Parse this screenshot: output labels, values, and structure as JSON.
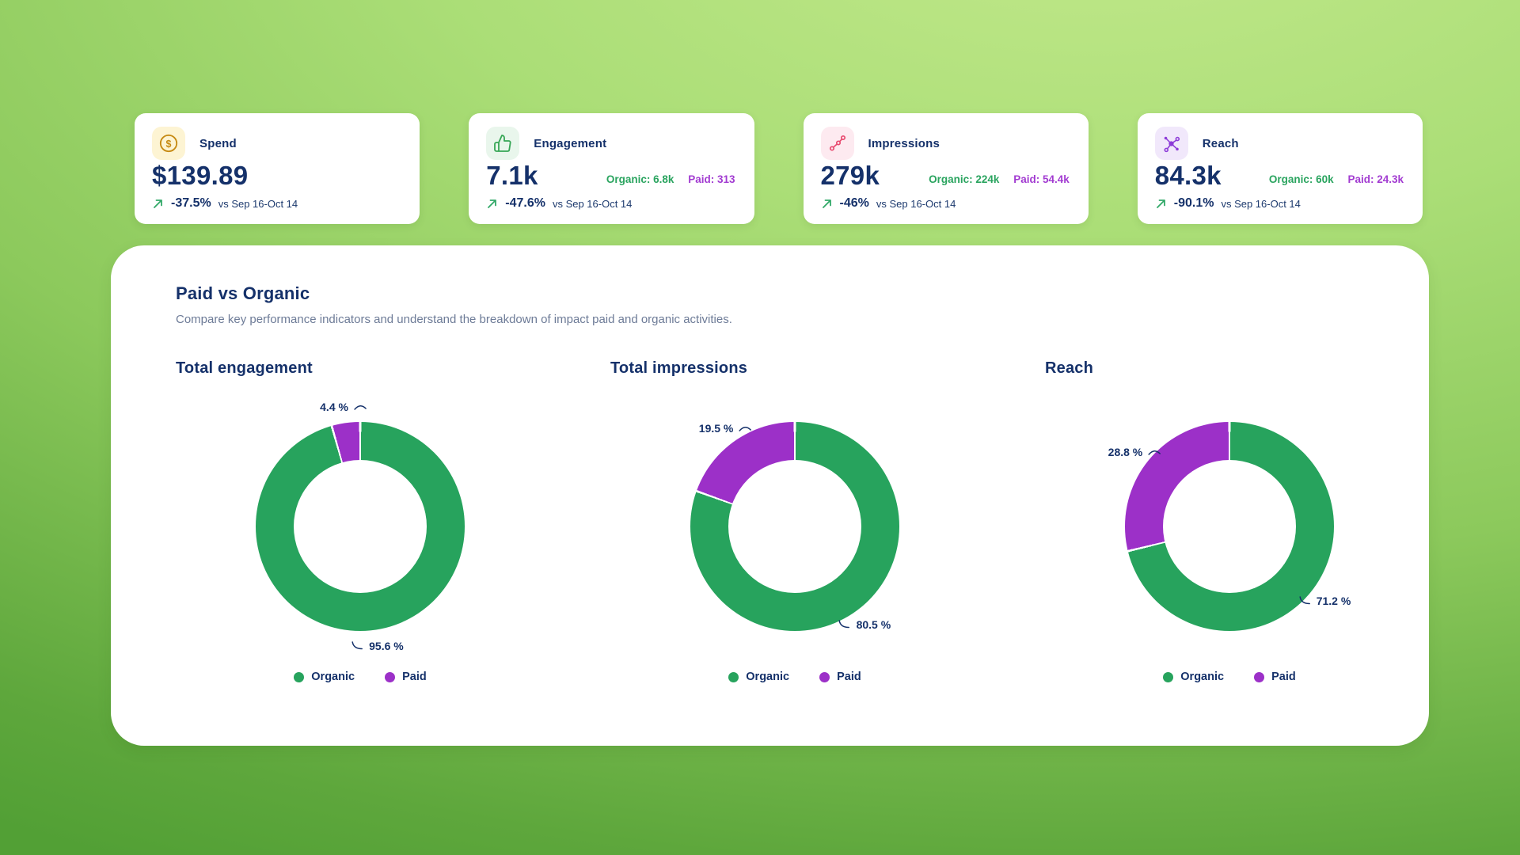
{
  "theme": {
    "background_top": "#b9e385",
    "background_bottom": "#52a035",
    "navy_text": "#15316a",
    "subtitle_gray": "#6d7b97",
    "organic_green": "#2aa45f",
    "paid_purple": "#a23bd1",
    "trend_arrow_green": "#33a969",
    "card_background": "#ffffff"
  },
  "kpi_cards": [
    {
      "label": "Spend",
      "value": "$139.89",
      "trend_value": "-37.5%",
      "trend_compare": "vs Sep 16-Oct 14",
      "icon": "dollar-circle-icon",
      "icon_color": "#c68a12",
      "icon_bg": "#fdf4d3"
    },
    {
      "label": "Engagement",
      "value": "7.1k",
      "organic": "Organic: 6.8k",
      "paid": "Paid: 313",
      "trend_value": "-47.6%",
      "trend_compare": "vs Sep 16-Oct 14",
      "icon": "thumbs-up-icon",
      "icon_color": "#36a655",
      "icon_bg": "#e9f6ec"
    },
    {
      "label": "Impressions",
      "value": "279k",
      "organic": "Organic: 224k",
      "paid": "Paid: 54.4k",
      "trend_value": "-46%",
      "trend_compare": "vs Sep 16-Oct 14",
      "icon": "scatter-share-icon",
      "icon_color": "#e84a6f",
      "icon_bg": "#fdeaf0"
    },
    {
      "label": "Reach",
      "value": "84.3k",
      "organic": "Organic: 60k",
      "paid": "Paid: 24.3k",
      "trend_value": "-90.1%",
      "trend_compare": "vs Sep 16-Oct 14",
      "icon": "network-icon",
      "icon_color": "#8d3bd8",
      "icon_bg": "#f1e8fb"
    }
  ],
  "panel": {
    "title": "Paid vs Organic",
    "subtitle": "Compare key performance indicators and understand the breakdown of impact paid and organic activities."
  },
  "chart_data": [
    {
      "type": "pie",
      "donut": true,
      "title": "Total engagement",
      "labels": [
        "Organic",
        "Paid"
      ],
      "values": [
        95.6,
        4.4
      ],
      "value_unit": "%",
      "colors": [
        "#27a35d",
        "#9c30c8"
      ],
      "legend_position": "bottom"
    },
    {
      "type": "pie",
      "donut": true,
      "title": "Total impressions",
      "labels": [
        "Organic",
        "Paid"
      ],
      "values": [
        80.5,
        19.5
      ],
      "value_unit": "%",
      "colors": [
        "#27a35d",
        "#9c30c8"
      ],
      "legend_position": "bottom"
    },
    {
      "type": "pie",
      "donut": true,
      "title": "Reach",
      "labels": [
        "Organic",
        "Paid"
      ],
      "values": [
        71.2,
        28.8
      ],
      "value_unit": "%",
      "colors": [
        "#27a35d",
        "#9c30c8"
      ],
      "legend_position": "bottom"
    }
  ]
}
